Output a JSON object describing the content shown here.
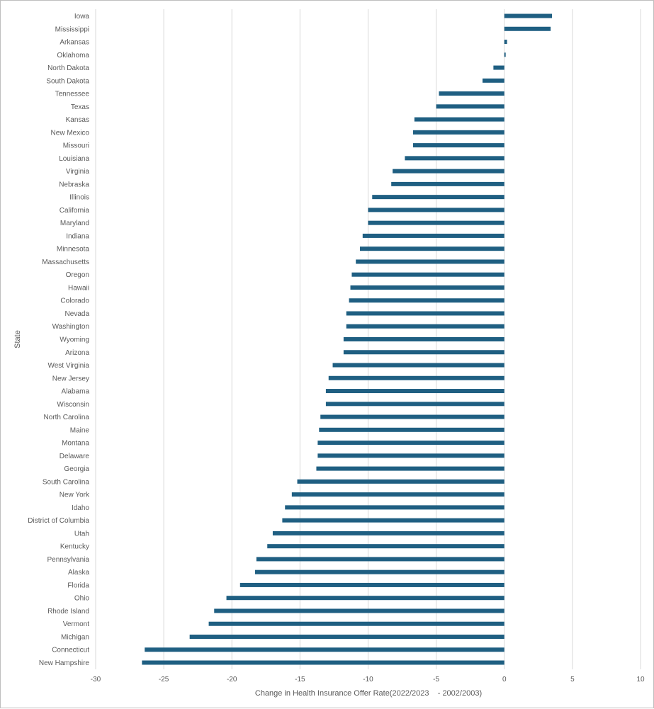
{
  "chart_data": {
    "type": "bar",
    "orientation": "horizontal",
    "xlabel": "Change in Health Insurance Offer Rate(2022/2023    - 2002/2003)",
    "ylabel": "State",
    "xlim": [
      -30,
      10
    ],
    "xticks": [
      -30,
      -25,
      -20,
      -15,
      -10,
      -5,
      0,
      5,
      10
    ],
    "grid": true,
    "bar_color": "#1f5f82",
    "categories": [
      "Iowa",
      "Mississippi",
      "Arkansas",
      "Oklahoma",
      "North Dakota",
      "South Dakota",
      "Tennessee",
      "Texas",
      "Kansas",
      "New Mexico",
      "Missouri",
      "Louisiana",
      "Virginia",
      "Nebraska",
      "Illinois",
      "California",
      "Maryland",
      "Indiana",
      "Minnesota",
      "Massachusetts",
      "Oregon",
      "Hawaii",
      "Colorado",
      "Nevada",
      "Washington",
      "Wyoming",
      "Arizona",
      "West Virginia",
      "New Jersey",
      "Alabama",
      "Wisconsin",
      "North Carolina",
      "Maine",
      "Montana",
      "Delaware",
      "Georgia",
      "South Carolina",
      "New York",
      "Idaho",
      "District of Columbia",
      "Utah",
      "Kentucky",
      "Pennsylvania",
      "Alaska",
      "Florida",
      "Ohio",
      "Rhode Island",
      "Vermont",
      "Michigan",
      "Connecticut",
      "New Hampshire"
    ],
    "values": [
      3.5,
      3.4,
      0.2,
      0.1,
      -0.8,
      -1.6,
      -4.8,
      -5.0,
      -6.6,
      -6.7,
      -6.7,
      -7.3,
      -8.2,
      -8.3,
      -9.7,
      -10.0,
      -10.0,
      -10.4,
      -10.6,
      -10.9,
      -11.2,
      -11.3,
      -11.4,
      -11.6,
      -11.6,
      -11.8,
      -11.8,
      -12.6,
      -12.9,
      -13.1,
      -13.1,
      -13.5,
      -13.6,
      -13.7,
      -13.7,
      -13.8,
      -15.2,
      -15.6,
      -16.1,
      -16.3,
      -17.0,
      -17.4,
      -18.2,
      -18.3,
      -19.4,
      -20.4,
      -21.3,
      -21.7,
      -23.1,
      -26.4,
      -26.6
    ]
  }
}
